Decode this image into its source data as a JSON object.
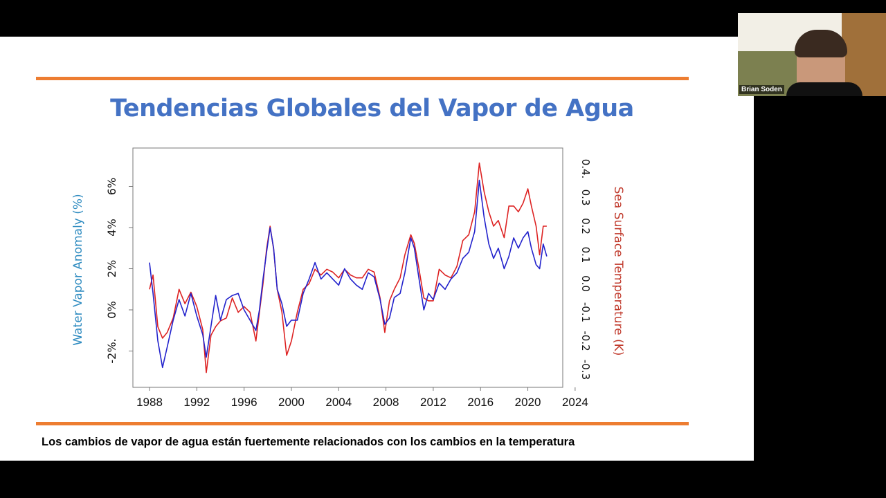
{
  "slide": {
    "title": "Tendencias Globales del Vapor de Agua",
    "caption": "Los cambios de vapor de agua están fuertemente relacionados con los cambios en la temperatura",
    "accent_color": "#ed7d31",
    "title_color": "#4472c4"
  },
  "webcam": {
    "participant_name": "Brian Soden"
  },
  "chart_data": {
    "type": "line",
    "title": "",
    "xlabel": "",
    "ylabel": "Water Vapor Anomaly (%)",
    "ylabel_right": "Sea Surface Temperature (K)",
    "xlim": [
      1986.5,
      2023
    ],
    "ylim": [
      -3.2,
      7.0
    ],
    "ylim_right": [
      -0.33,
      0.41
    ],
    "x_ticks": [
      "1988",
      "1992",
      "1996",
      "2000",
      "2004",
      "2008",
      "2012",
      "2016",
      "2020",
      "2024"
    ],
    "y_ticks": [
      "-2%.",
      "0%",
      "2%",
      "4%",
      "6%"
    ],
    "y_ticks_right": [
      "-0.3",
      "-0.2",
      "-0.1",
      "0.0",
      "0.1",
      "0.2",
      "0.3",
      "0.4."
    ],
    "grid": false,
    "x": [
      1988.0,
      1988.3,
      1988.7,
      1989.1,
      1989.5,
      1990.0,
      1990.5,
      1991.0,
      1991.5,
      1992.0,
      1992.5,
      1992.8,
      1993.2,
      1993.6,
      1994.0,
      1994.5,
      1995.0,
      1995.5,
      1996.0,
      1996.5,
      1997.0,
      1997.3,
      1997.6,
      1997.9,
      1998.2,
      1998.5,
      1998.8,
      1999.2,
      1999.6,
      2000.0,
      2000.5,
      2001.0,
      2001.5,
      2002.0,
      2002.5,
      2003.0,
      2003.5,
      2004.0,
      2004.5,
      2005.0,
      2005.5,
      2006.0,
      2006.5,
      2007.0,
      2007.5,
      2007.9,
      2008.3,
      2008.7,
      2009.2,
      2009.6,
      2010.1,
      2010.4,
      2010.8,
      2011.2,
      2011.6,
      2012.0,
      2012.5,
      2013.0,
      2013.5,
      2014.0,
      2014.5,
      2015.0,
      2015.5,
      2015.9,
      2016.3,
      2016.7,
      2017.1,
      2017.5,
      2018.0,
      2018.4,
      2018.8,
      2019.2,
      2019.6,
      2020.0,
      2020.3,
      2020.7,
      2021.0,
      2021.3,
      2021.6
    ],
    "series": [
      {
        "axis": "left",
        "color": "#2222cc",
        "values": [
          2.3,
          0.8,
          -1.5,
          -2.8,
          -1.8,
          -0.5,
          0.5,
          -0.3,
          0.8,
          -0.3,
          -1.2,
          -2.3,
          -0.8,
          0.7,
          -0.5,
          0.5,
          0.7,
          0.8,
          0.0,
          -0.5,
          -1.0,
          0.0,
          1.5,
          2.8,
          4.0,
          3.0,
          1.0,
          0.3,
          -0.8,
          -0.5,
          -0.5,
          0.8,
          1.5,
          2.3,
          1.5,
          1.8,
          1.5,
          1.2,
          2.0,
          1.5,
          1.2,
          1.0,
          1.8,
          1.6,
          0.5,
          -0.7,
          -0.4,
          0.6,
          0.8,
          1.8,
          3.5,
          3.0,
          1.5,
          0.0,
          0.8,
          0.5,
          1.3,
          1.0,
          1.5,
          1.8,
          2.5,
          2.8,
          3.8,
          6.3,
          4.5,
          3.2,
          2.5,
          3.0,
          2.0,
          2.6,
          3.5,
          3.0,
          3.5,
          3.8,
          3.0,
          2.2,
          2.0,
          3.2,
          2.6
        ]
      },
      {
        "axis": "right",
        "color": "#dd2222",
        "values": [
          -0.02,
          0.03,
          -0.15,
          -0.19,
          -0.17,
          -0.12,
          -0.02,
          -0.07,
          -0.03,
          -0.08,
          -0.16,
          -0.31,
          -0.18,
          -0.15,
          -0.13,
          -0.12,
          -0.05,
          -0.1,
          -0.08,
          -0.1,
          -0.2,
          -0.1,
          0.0,
          0.12,
          0.2,
          0.12,
          -0.02,
          -0.1,
          -0.25,
          -0.2,
          -0.1,
          -0.02,
          0.0,
          0.05,
          0.03,
          0.05,
          0.04,
          0.02,
          0.05,
          0.03,
          0.02,
          0.02,
          0.05,
          0.04,
          -0.05,
          -0.17,
          -0.06,
          -0.02,
          0.02,
          0.1,
          0.17,
          0.14,
          0.05,
          -0.05,
          -0.06,
          -0.06,
          0.05,
          0.03,
          0.02,
          0.06,
          0.15,
          0.17,
          0.25,
          0.42,
          0.32,
          0.25,
          0.2,
          0.22,
          0.16,
          0.27,
          0.27,
          0.25,
          0.28,
          0.33,
          0.27,
          0.2,
          0.1,
          0.2,
          0.2
        ]
      }
    ],
    "left_label_color": "#2e8bc0",
    "right_label_color": "#c0392b"
  }
}
